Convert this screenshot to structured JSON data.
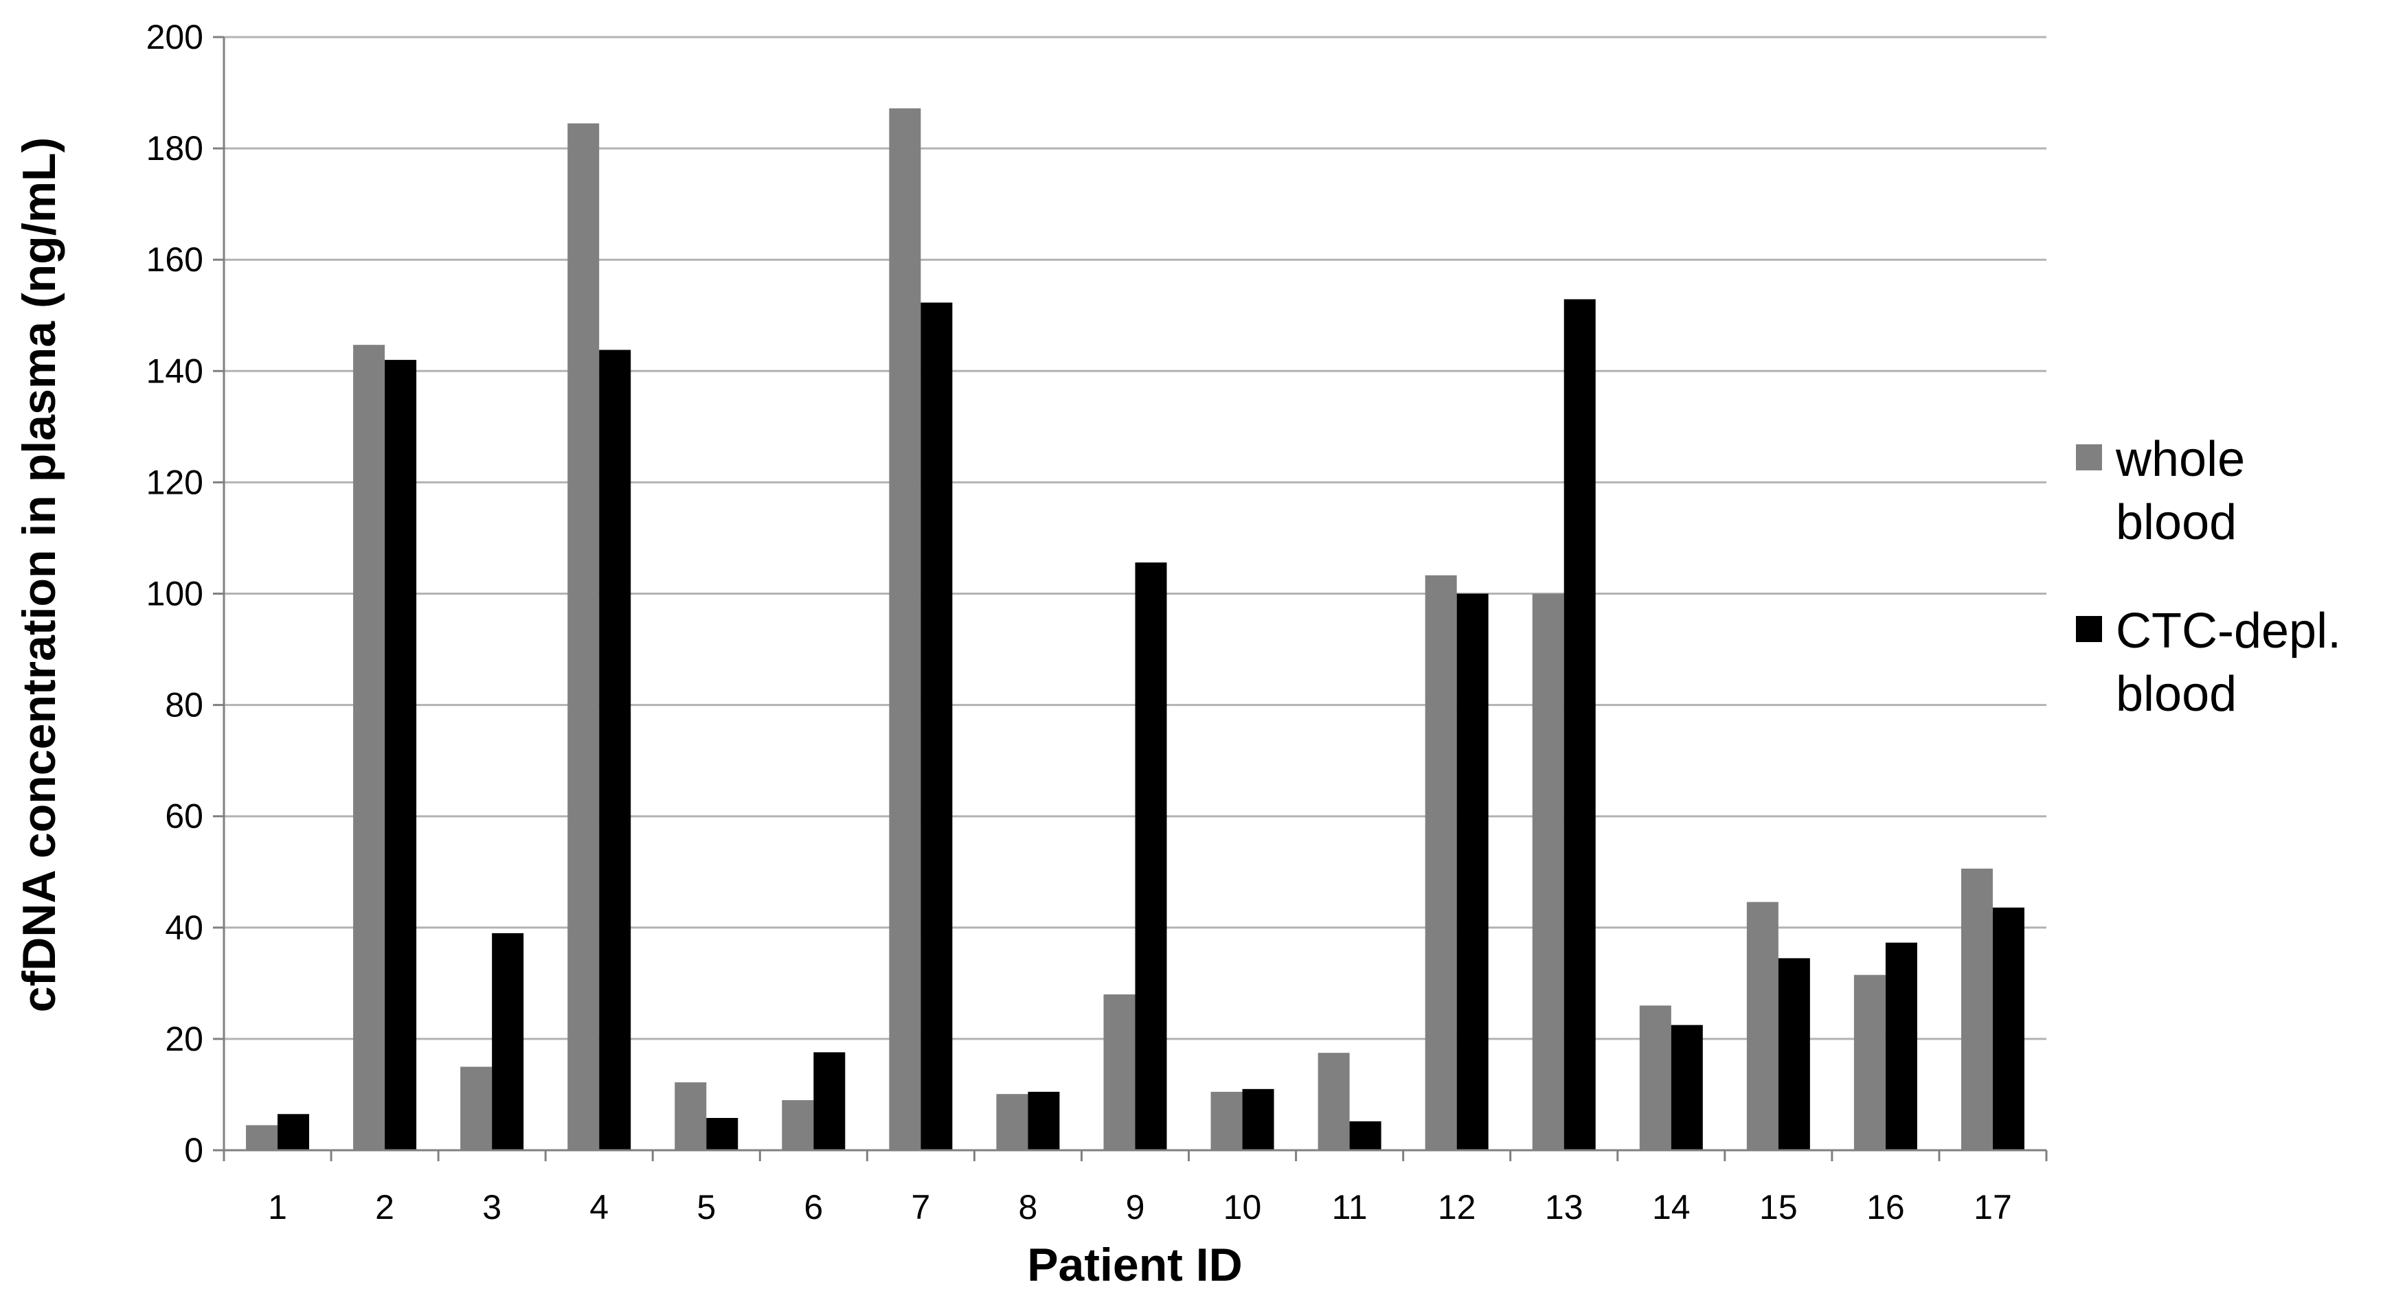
{
  "chart_data": {
    "type": "bar",
    "title": "",
    "xlabel": "Patient ID",
    "ylabel": "cfDNA concentration in plasma (ng/mL)",
    "ylim": [
      0,
      200
    ],
    "yticks": [
      0,
      20,
      40,
      60,
      80,
      100,
      120,
      140,
      160,
      180,
      200
    ],
    "grid": true,
    "legend_position": "right",
    "categories": [
      "1",
      "2",
      "3",
      "4",
      "5",
      "6",
      "7",
      "8",
      "9",
      "10",
      "11",
      "12",
      "13",
      "14",
      "15",
      "16",
      "17"
    ],
    "series": [
      {
        "name": "whole blood",
        "legend_lines": [
          "whole",
          "blood"
        ],
        "color": "#808080",
        "values": [
          4.5,
          144.7,
          15.0,
          184.5,
          12.2,
          9.0,
          187.2,
          10.1,
          28.0,
          10.5,
          17.5,
          103.3,
          100.0,
          26.0,
          44.6,
          31.5,
          50.6
        ]
      },
      {
        "name": "CTC-depl. blood",
        "legend_lines": [
          "CTC-depl.",
          "blood"
        ],
        "color": "#000000",
        "values": [
          6.5,
          142.0,
          39.0,
          143.8,
          5.8,
          17.6,
          152.3,
          10.5,
          105.6,
          11.0,
          5.2,
          100.0,
          152.9,
          22.5,
          34.5,
          37.3,
          43.6
        ]
      }
    ]
  }
}
